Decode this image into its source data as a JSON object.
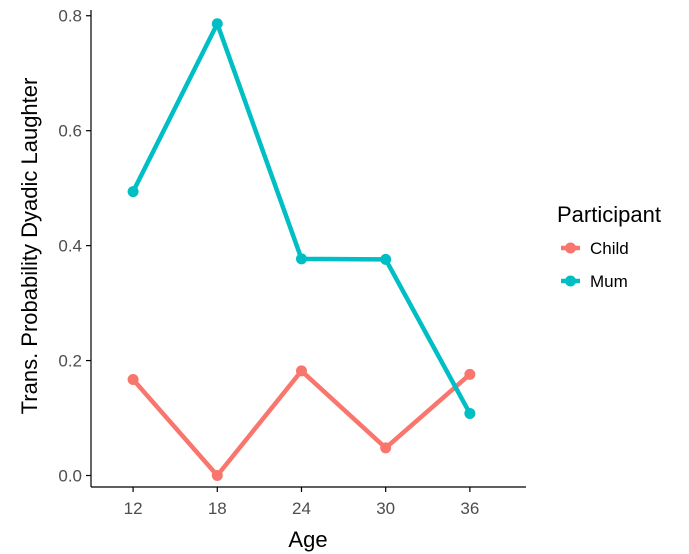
{
  "chart_data": {
    "type": "line",
    "x": [
      12,
      18,
      24,
      30,
      36
    ],
    "xticks": [
      "12",
      "18",
      "24",
      "30",
      "36"
    ],
    "xlim": [
      9,
      40
    ],
    "ylim": [
      -0.02,
      0.81
    ],
    "yticks": [
      "0.0",
      "0.2",
      "0.4",
      "0.6",
      "0.8"
    ],
    "xlabel": "Age",
    "ylabel": "Trans. Probability Dyadic Laughter",
    "legend_title": "Participant",
    "legend_position": "right",
    "grid": false,
    "series": [
      {
        "name": "Child",
        "color": "#F8766D",
        "values": [
          0.167,
          0.0,
          0.182,
          0.048,
          0.176
        ]
      },
      {
        "name": "Mum",
        "color": "#00BFC4",
        "values": [
          0.494,
          0.786,
          0.377,
          0.376,
          0.108
        ]
      }
    ]
  }
}
